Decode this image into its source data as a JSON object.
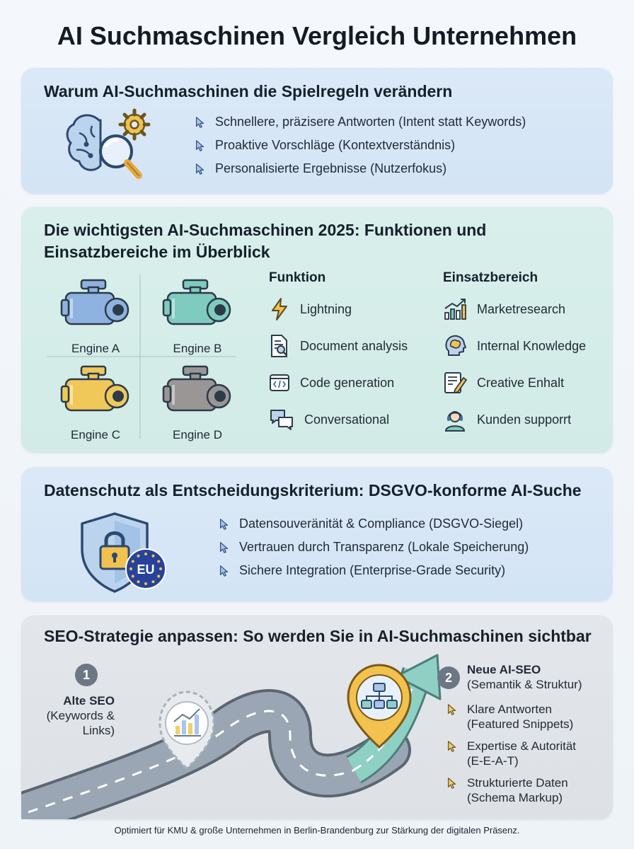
{
  "title": "AI Suchmaschinen Vergleich Unternehmen",
  "section1": {
    "heading": "Warum AI-Suchmaschinen die Spielregeln verändern",
    "items": [
      "Schnellere, präzisere Antworten (Intent statt Keywords)",
      "Proaktive Vorschläge (Kontextverständnis)",
      "Personalisierte Ergebnisse (Nutzerfokus)"
    ]
  },
  "section2": {
    "heading_line1": "Die wichtigsten AI-Suchmaschinen 2025: Funktionen und",
    "heading_line2": "Einsatzbereiche im Überblick",
    "engines": [
      "Engine A",
      "Engine B",
      "Engine C",
      "Engine D"
    ],
    "function_header": "Funktion",
    "functions": [
      "Lightning",
      "Document analysis",
      "Code generation",
      "Conversational"
    ],
    "usage_header": "Einsatzbereich",
    "usages": [
      "Marketresearch",
      "Internal Knowledge",
      "Creative Enhalt",
      "Kunden supporrt"
    ]
  },
  "section3": {
    "heading": "Datenschutz als Entscheidungskriterium: DSGVO-konforme AI-Suche",
    "badge": "EU",
    "items": [
      "Datensouveränität & Compliance (DSGVO-Siegel)",
      "Vertrauen durch Transparenz (Lokale Speicherung)",
      "Sichere Integration (Enterprise-Grade Security)"
    ]
  },
  "section4": {
    "heading": "SEO-Strategie anpassen: So werden Sie in AI-Suchmaschinen sichtbar",
    "step1": {
      "number": "1",
      "title": "Alte SEO",
      "line1": "(Keywords &",
      "line2": "Links)"
    },
    "step2": {
      "number": "2",
      "title": "Neue AI-SEO",
      "subtitle": "(Semantik & Struktur)"
    },
    "items": [
      {
        "line1": "Klare Antworten",
        "line2": "(Featured Snippets)"
      },
      {
        "line1": "Expertise & Autorität",
        "line2": "(E-E-A-T)"
      },
      {
        "line1": "Strukturierte Daten",
        "line2": "(Schema Markup)"
      }
    ]
  },
  "footer": "Optimiert für KMU & große Unternehmen in Berlin-Brandenburg zur Stärkung der digitalen Präsenz.",
  "colors": {
    "engine_a": "#8fb3e0",
    "engine_b": "#7fcbbf",
    "engine_c": "#f0c85a",
    "engine_d": "#9a9696",
    "accent_blue": "#3d6fa8",
    "road": "#8d99a6",
    "arrow": "#7fcbbf",
    "pin": "#f0c050"
  }
}
